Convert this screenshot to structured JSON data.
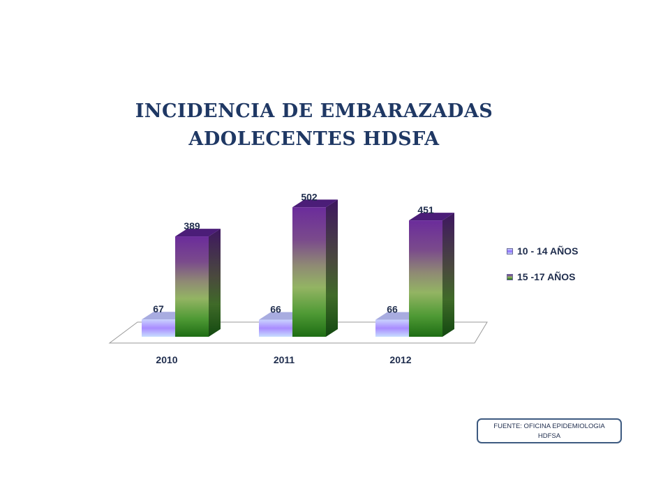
{
  "chart_data": {
    "type": "bar",
    "title_lines": [
      "INCIDENCIA DE EMBARAZADAS",
      "ADOLECENTES HDSFA"
    ],
    "categories": [
      "2010",
      "2011",
      "2012"
    ],
    "series": [
      {
        "name": "10 - 14 AÑOS",
        "values": [
          67,
          66,
          66
        ],
        "color": "#9999ff"
      },
      {
        "name": "15 -17 AÑOS",
        "values": [
          389,
          502,
          451
        ],
        "color": "#7030a0"
      }
    ],
    "ylim": [
      0,
      600
    ],
    "grid": false,
    "legend_position": "right",
    "style": "3d-column"
  },
  "source_box": {
    "line1": "FUENTE:  OFICINA EPIDEMIOLOGIA",
    "line2": "HDFSA"
  }
}
